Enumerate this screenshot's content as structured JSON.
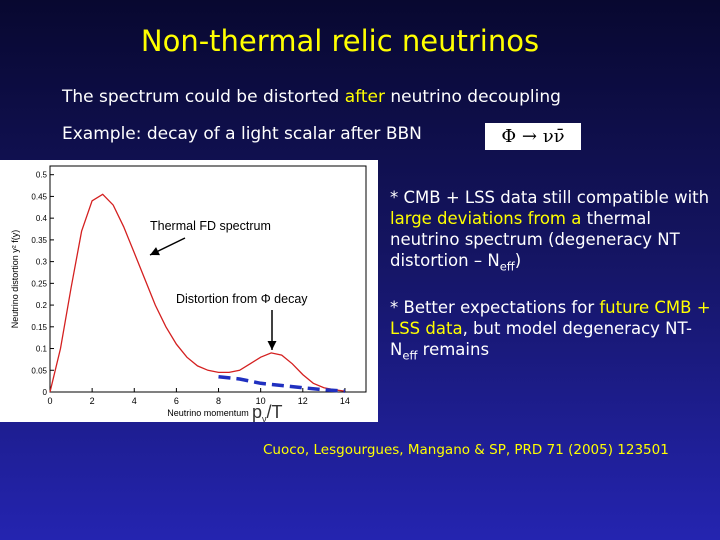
{
  "title": "Non-thermal relic neutrinos",
  "intro": [
    [
      {
        "text": "The spectrum could be distorted ",
        "style": "plain"
      },
      {
        "text": "after",
        "style": "highlight"
      },
      {
        "text": " neutrino decoupling",
        "style": "plain"
      }
    ],
    [
      {
        "text": "Example: decay of a light scalar after BBN",
        "style": "plain"
      }
    ]
  ],
  "formula": "Φ → νν̄",
  "plot": {
    "type": "line",
    "y_label": "Neutrino distortion y² f(y)",
    "x_label": "Neutrino momentum",
    "x_overlay": [
      "p",
      "ν",
      "/T"
    ],
    "xlim": [
      0,
      15
    ],
    "ylim": [
      0,
      0.52
    ],
    "xticks": [
      0,
      2,
      4,
      6,
      8,
      10,
      12,
      14
    ],
    "yticks": [
      0,
      0.05,
      0.1,
      0.15,
      0.2,
      0.25,
      0.3,
      0.35,
      0.4,
      0.45,
      0.5
    ],
    "series": [
      {
        "color": "#d42020",
        "dash": false,
        "x": [
          0,
          0.5,
          1,
          1.5,
          2,
          2.5,
          3,
          3.5,
          4,
          4.5,
          5,
          5.5,
          6,
          6.5,
          7,
          7.5,
          8,
          8.5,
          9,
          9.5,
          10,
          10.5,
          11,
          11.5,
          12,
          12.5,
          13,
          13.5,
          14
        ],
        "y": [
          0,
          0.1,
          0.24,
          0.37,
          0.44,
          0.455,
          0.43,
          0.38,
          0.32,
          0.26,
          0.2,
          0.15,
          0.11,
          0.08,
          0.06,
          0.05,
          0.045,
          0.045,
          0.05,
          0.065,
          0.08,
          0.09,
          0.085,
          0.065,
          0.04,
          0.02,
          0.01,
          0.005,
          0.002
        ]
      },
      {
        "color": "#2030c0",
        "dash": true,
        "x": [
          8,
          9,
          10,
          11,
          12,
          13,
          14
        ],
        "y": [
          0.035,
          0.03,
          0.02,
          0.015,
          0.01,
          0.005,
          0.002
        ]
      }
    ],
    "annotations": [
      "Thermal FD spectrum",
      "Distortion from Φ decay"
    ]
  },
  "bullets": [
    [
      {
        "text": "* CMB + LSS data still compatible with ",
        "style": "plain"
      },
      {
        "text": "large deviations from a",
        "style": "highlight"
      },
      {
        "text": " thermal neutrino spectrum (degeneracy NT distortion – N",
        "style": "plain"
      },
      {
        "text": "eff",
        "style": "sub"
      },
      {
        "text": ")",
        "style": "plain"
      }
    ],
    [
      {
        "text": "* Better expectations for ",
        "style": "plain"
      },
      {
        "text": "future CMB + LSS data",
        "style": "highlight"
      },
      {
        "text": ", but model degeneracy NT- N",
        "style": "plain"
      },
      {
        "text": "eff",
        "style": "sub"
      },
      {
        "text": " remains",
        "style": "plain"
      }
    ]
  ],
  "citation": "Cuoco, Lesgourgues, Mangano & SP, PRD 71 (2005) 123501"
}
